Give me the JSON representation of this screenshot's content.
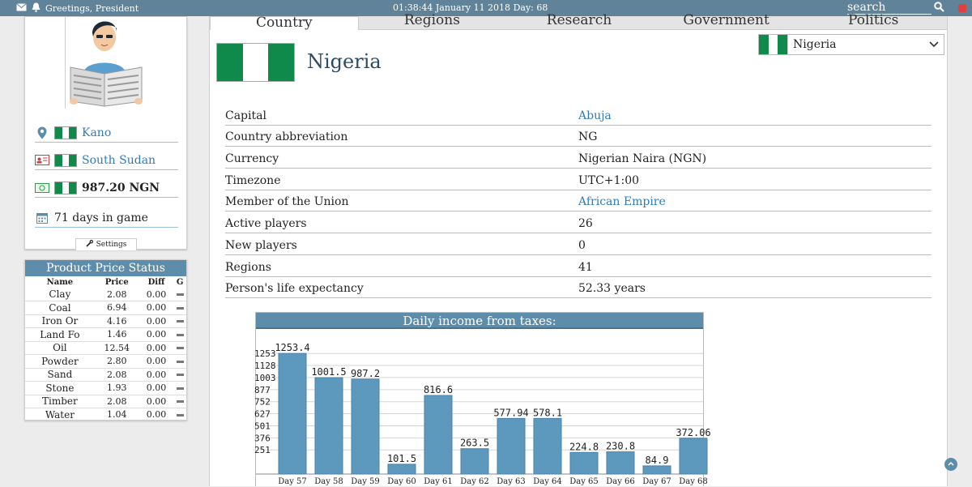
{
  "topbar": {
    "greeting": "Greetings, President",
    "datetime": "01:38:44 January 11 2018",
    "day": "Day: 68",
    "search_placeholder": "search"
  },
  "profile": {
    "location": "Kano",
    "citizenship": "South Sudan",
    "money": "987.20 NGN",
    "days_in_game": "71 days in game",
    "settings_label": "Settings"
  },
  "price_status": {
    "title": "Product Price Status",
    "headers": [
      "Name",
      "Price",
      "Diff",
      "G"
    ],
    "rows": [
      {
        "name": "Clay",
        "price": "2.08",
        "diff": "0.00"
      },
      {
        "name": "Coal",
        "price": "6.94",
        "diff": "0.00"
      },
      {
        "name": "Iron Or",
        "price": "4.16",
        "diff": "0.00"
      },
      {
        "name": "Land Fo",
        "price": "1.46",
        "diff": "0.00"
      },
      {
        "name": "Oil",
        "price": "12.54",
        "diff": "0.00"
      },
      {
        "name": "Powder",
        "price": "2.80",
        "diff": "0.00"
      },
      {
        "name": "Sand",
        "price": "2.08",
        "diff": "0.00"
      },
      {
        "name": "Stone",
        "price": "1.93",
        "diff": "0.00"
      },
      {
        "name": "Timber",
        "price": "2.08",
        "diff": "0.00"
      },
      {
        "name": "Water",
        "price": "1.04",
        "diff": "0.00"
      }
    ]
  },
  "tabs": [
    "Country",
    "Regions",
    "Research",
    "Government",
    "Politics"
  ],
  "country": {
    "name": "Nigeria",
    "selected": "Nigeria",
    "info": [
      {
        "label": "Capital",
        "value": "Abuja",
        "link": true
      },
      {
        "label": "Country abbreviation",
        "value": "NG",
        "link": false
      },
      {
        "label": "Currency",
        "value": "Nigerian Naira (NGN)",
        "link": false
      },
      {
        "label": "Timezone",
        "value": "UTC+1:00",
        "link": false
      },
      {
        "label": "Member of the Union",
        "value": "African Empire",
        "link": true
      },
      {
        "label": "Active players",
        "value": "26",
        "link": false
      },
      {
        "label": "New players",
        "value": "0",
        "link": false
      },
      {
        "label": "Regions",
        "value": "41",
        "link": false
      },
      {
        "label": "Person's life expectancy",
        "value": "52.33 years",
        "link": false
      }
    ]
  },
  "colors": {
    "accent": "#5d8dab",
    "bar": "#5d98bd",
    "flag_green": "#0f8a4b",
    "link": "#2f7bb8"
  },
  "chart_data": {
    "type": "bar",
    "title": "Daily income from taxes:",
    "categories": [
      "Day 57",
      "Day 58",
      "Day 59",
      "Day 60",
      "Day 61",
      "Day 62",
      "Day 63",
      "Day 64",
      "Day 65",
      "Day 66",
      "Day 67",
      "Day 68"
    ],
    "values": [
      1253.4,
      1001.5,
      987.2,
      101.5,
      816.6,
      263.5,
      577.94,
      578.1,
      224.8,
      230.8,
      84.9,
      372.06
    ],
    "labels": [
      "1253.4",
      "1001.5",
      "987.2",
      "101.5",
      "816.6",
      "263.5",
      "577.94",
      "578.1",
      "224.8",
      "230.8",
      "84.9",
      "372.06"
    ],
    "yticks": [
      251,
      376,
      501,
      627,
      752,
      877,
      1003,
      1128,
      1253
    ],
    "ylim": [
      0,
      1440
    ],
    "grid": true
  }
}
